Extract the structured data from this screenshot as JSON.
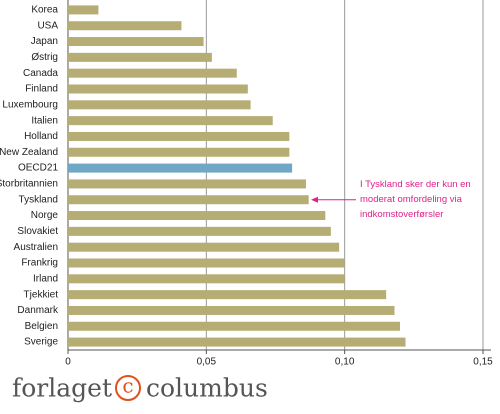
{
  "chart_data": {
    "type": "barh",
    "categories": [
      "Korea",
      "USA",
      "Japan",
      "Østrig",
      "Canada",
      "Finland",
      "Luxembourg",
      "Italien",
      "Holland",
      "New Zealand",
      "OECD21",
      "Storbritannien",
      "Tyskland",
      "Norge",
      "Slovakiet",
      "Australien",
      "Frankrig",
      "Irland",
      "Tjekkiet",
      "Danmark",
      "Belgien",
      "Sverige"
    ],
    "values": [
      0.011,
      0.041,
      0.049,
      0.052,
      0.061,
      0.065,
      0.066,
      0.074,
      0.08,
      0.08,
      0.081,
      0.086,
      0.087,
      0.093,
      0.095,
      0.098,
      0.1,
      0.1,
      0.115,
      0.118,
      0.12,
      0.122
    ],
    "colors": [
      "#b5ad74",
      "#b5ad74",
      "#b5ad74",
      "#b5ad74",
      "#b5ad74",
      "#b5ad74",
      "#b5ad74",
      "#b5ad74",
      "#b5ad74",
      "#b5ad74",
      "#6fa7c6",
      "#b5ad74",
      "#b5ad74",
      "#b5ad74",
      "#b5ad74",
      "#b5ad74",
      "#b5ad74",
      "#b5ad74",
      "#b5ad74",
      "#b5ad74",
      "#b5ad74",
      "#b5ad74"
    ],
    "xlim": [
      0,
      0.15
    ],
    "xticks": [
      0,
      {
        "value": 0.05,
        "label": "0,05"
      },
      {
        "value": 0.1,
        "label": "0,10"
      },
      {
        "value": 0.15,
        "label": "0,15"
      }
    ],
    "grid": true,
    "annotation": {
      "category_index": 12,
      "lines": [
        "I Tyskland sker der kun en",
        "moderat omfordeling via",
        "indkomstoverførsler"
      ],
      "color": "#e0208a"
    }
  },
  "footer": {
    "left": "forlaget",
    "mark": "c",
    "right": "columbus"
  }
}
